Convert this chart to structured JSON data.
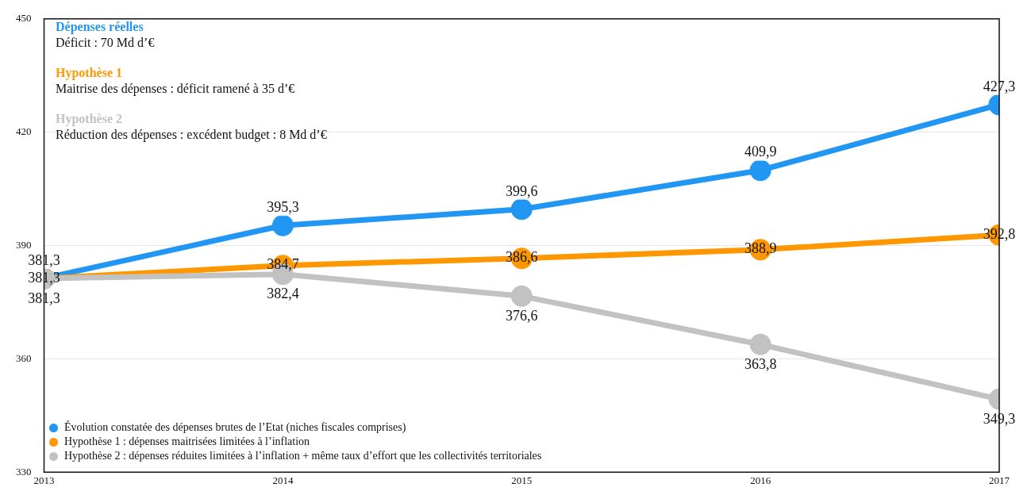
{
  "chart_data": {
    "type": "line",
    "x": [
      2013,
      2014,
      2015,
      2016,
      2017
    ],
    "series": [
      {
        "name": "Évolution constatée des dépenses brutes de l’Etat (niches fiscales comprises)",
        "color": "#2196f3",
        "values": [
          381.3,
          395.3,
          399.6,
          409.9,
          427.3
        ],
        "value_labels": [
          "381,3",
          "395,3",
          "399,6",
          "409,9",
          "427,3"
        ]
      },
      {
        "name": "Hypothèse 1 : dépenses maitrisées limitées à l’inflation",
        "color": "#ff9800",
        "values": [
          381.3,
          384.7,
          386.6,
          388.9,
          392.8
        ],
        "value_labels": [
          "381,3",
          "384,7",
          "386,6",
          "388,9",
          "392,8"
        ]
      },
      {
        "name": "Hypothèse 2 : dépenses réduites limitées à l’inflation + même taux d’effort que les collectivités territoriales",
        "color": "#c2c2c2",
        "values": [
          381.3,
          382.4,
          376.6,
          363.8,
          349.3
        ],
        "value_labels": [
          "381,3",
          "382,4",
          "376,6",
          "363,8",
          "349,3"
        ]
      }
    ],
    "xlim": [
      2013,
      2017
    ],
    "xticks": [
      2013,
      2014,
      2015,
      2016,
      2017
    ],
    "ylim": [
      330,
      450
    ],
    "yticks": [
      330,
      360,
      390,
      420,
      450
    ],
    "grid": "y",
    "legend": "bottom left",
    "marker": "circle",
    "line_style": "solid",
    "annotations": [
      "Dépenses réelles",
      "Déficit : 70 Md d’€",
      "Hypothèse 1",
      "Maitrise des dépenses : déficit ramené à 35 d’€",
      "Hypothèse 2",
      "Réduction des dépenses : excédent budget : 8 Md d’€"
    ]
  }
}
